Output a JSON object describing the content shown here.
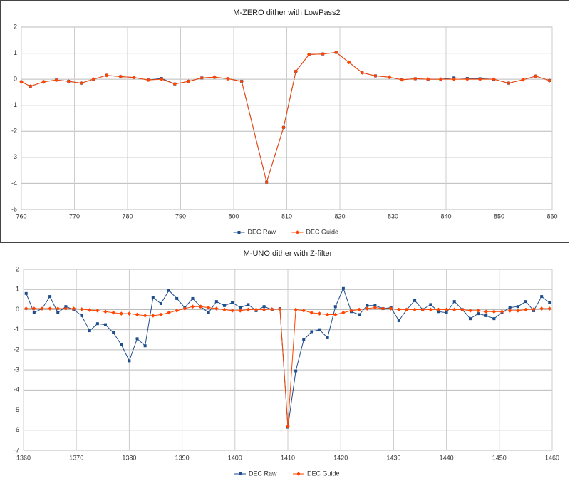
{
  "chart_data": [
    {
      "type": "line",
      "title": "M-ZERO dither with LowPass2",
      "xlim": [
        760,
        860
      ],
      "xticks": [
        760,
        770,
        780,
        790,
        800,
        810,
        820,
        830,
        840,
        850,
        860
      ],
      "ylim": [
        -5,
        2
      ],
      "yticks": [
        2,
        1,
        0,
        -1,
        -2,
        -3,
        -4,
        -5
      ],
      "grid": true,
      "legend": "bottom",
      "x": [
        760,
        761.7,
        764.2,
        766.6,
        768.9,
        771.3,
        773.6,
        776.1,
        778.7,
        781.2,
        783.9,
        786.4,
        788.9,
        791.5,
        794.0,
        796.4,
        798.9,
        801.5,
        806.2,
        809.4,
        811.7,
        814.2,
        816.8,
        819.3,
        821.7,
        824.2,
        826.7,
        829.3,
        831.7,
        834.2,
        836.6,
        839.0,
        841.5,
        844.0,
        846.4,
        849.0,
        851.8,
        854.5,
        856.9,
        859.5
      ],
      "series": [
        {
          "name": "DEC Raw",
          "color": "#1f4e8c",
          "values": [
            -0.1,
            -0.27,
            -0.1,
            -0.03,
            -0.08,
            -0.15,
            0.0,
            0.15,
            0.1,
            0.07,
            -0.03,
            0.03,
            -0.18,
            -0.08,
            0.05,
            0.08,
            0.02,
            -0.08,
            -3.95,
            -1.85,
            0.3,
            0.95,
            0.97,
            1.03,
            0.65,
            0.25,
            0.13,
            0.08,
            -0.02,
            0.02,
            0.0,
            0.0,
            0.05,
            0.03,
            0.02,
            0.0,
            -0.15,
            -0.02,
            0.12,
            -0.05
          ]
        },
        {
          "name": "DEC Guide",
          "color": "#ff4500",
          "values": [
            -0.1,
            -0.27,
            -0.1,
            -0.03,
            -0.08,
            -0.15,
            0.0,
            0.15,
            0.1,
            0.07,
            -0.03,
            0.0,
            -0.18,
            -0.08,
            0.05,
            0.08,
            0.02,
            -0.08,
            -3.95,
            -1.85,
            0.3,
            0.95,
            0.97,
            1.03,
            0.65,
            0.25,
            0.13,
            0.08,
            -0.02,
            0.02,
            0.0,
            0.0,
            0.0,
            0.0,
            0.0,
            0.0,
            -0.15,
            -0.02,
            0.12,
            -0.05
          ]
        }
      ]
    },
    {
      "type": "line",
      "title": "M-UNO dither with Z-filter",
      "xlim": [
        1360,
        1460
      ],
      "xticks": [
        1360,
        1370,
        1380,
        1390,
        1400,
        1410,
        1420,
        1430,
        1440,
        1450,
        1460
      ],
      "ylim": [
        -7,
        2
      ],
      "yticks": [
        2,
        1,
        0,
        -1,
        -2,
        -3,
        -4,
        -5,
        -6,
        -7
      ],
      "grid": true,
      "legend": "bottom",
      "x": [
        1360.5,
        1362,
        1363.5,
        1365,
        1366.5,
        1368,
        1369.5,
        1371,
        1372.5,
        1374,
        1375.5,
        1377,
        1378.5,
        1380,
        1381.5,
        1383,
        1384.5,
        1386,
        1387.5,
        1389,
        1390.5,
        1392,
        1393.5,
        1395,
        1396.5,
        1398,
        1399.5,
        1401,
        1402.5,
        1404,
        1405.5,
        1407,
        1408.5,
        1410,
        1411.5,
        1413,
        1414.5,
        1416,
        1417.5,
        1419,
        1420.5,
        1422,
        1423.5,
        1425,
        1426.5,
        1428,
        1429.5,
        1431,
        1432.5,
        1434,
        1435.5,
        1437,
        1438.5,
        1440,
        1441.5,
        1443,
        1444.5,
        1446,
        1447.5,
        1449,
        1450.5,
        1452,
        1453.5,
        1455,
        1456.5,
        1458,
        1459.5
      ],
      "series": [
        {
          "name": "DEC Raw",
          "color": "#1f4e8c",
          "values": [
            0.8,
            -0.15,
            0.05,
            0.65,
            -0.15,
            0.15,
            0.0,
            -0.3,
            -1.05,
            -0.7,
            -0.75,
            -1.15,
            -1.75,
            -2.55,
            -1.45,
            -1.8,
            0.6,
            0.3,
            0.95,
            0.55,
            0.1,
            0.55,
            0.15,
            -0.15,
            0.4,
            0.2,
            0.35,
            0.1,
            0.25,
            -0.05,
            0.15,
            0.0,
            0.05,
            -5.85,
            -3.05,
            -1.5,
            -1.1,
            -1.0,
            -1.4,
            0.15,
            1.05,
            -0.1,
            -0.25,
            0.2,
            0.2,
            0.05,
            0.1,
            -0.55,
            0.0,
            0.45,
            0.0,
            0.25,
            -0.1,
            -0.15,
            0.4,
            0.0,
            -0.45,
            -0.2,
            -0.3,
            -0.45,
            -0.15,
            0.1,
            0.15,
            0.4,
            -0.05,
            0.65,
            0.35
          ]
        },
        {
          "name": "DEC Guide",
          "color": "#ff4500",
          "values": [
            0.05,
            0.05,
            0.05,
            0.05,
            0.05,
            0.05,
            0.05,
            0.02,
            -0.02,
            -0.05,
            -0.1,
            -0.15,
            -0.2,
            -0.2,
            -0.25,
            -0.3,
            -0.3,
            -0.25,
            -0.15,
            -0.05,
            0.05,
            0.15,
            0.15,
            0.1,
            0.05,
            0.0,
            -0.05,
            -0.05,
            0.0,
            0.0,
            0.0,
            0.02,
            0.02,
            -5.8,
            0.0,
            -0.05,
            -0.15,
            -0.2,
            -0.25,
            -0.25,
            -0.15,
            -0.05,
            0.0,
            0.05,
            0.1,
            0.05,
            0.05,
            0.0,
            0.0,
            0.0,
            0.0,
            0.0,
            0.0,
            0.0,
            0.0,
            0.0,
            -0.05,
            -0.05,
            -0.1,
            -0.1,
            -0.1,
            -0.05,
            -0.05,
            0.0,
            0.02,
            0.05,
            0.05
          ]
        }
      ]
    }
  ]
}
